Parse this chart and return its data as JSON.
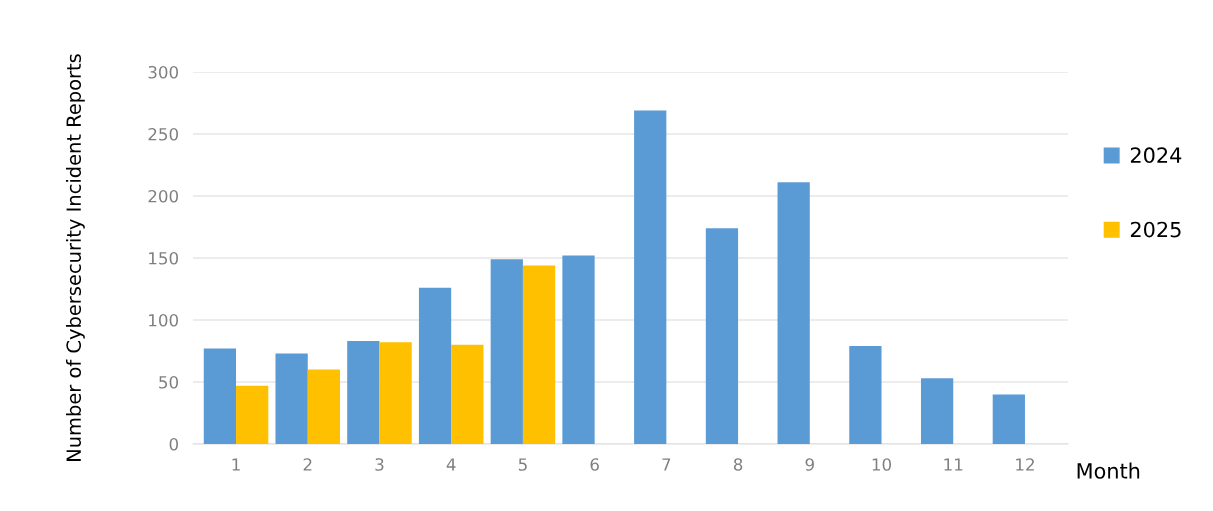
{
  "chart_data": {
    "type": "bar",
    "xlabel": "Month",
    "ylabel": "Number of Cybersecurity Incident Reports",
    "categories": [
      "1",
      "2",
      "3",
      "4",
      "5",
      "6",
      "7",
      "8",
      "9",
      "10",
      "11",
      "12"
    ],
    "series": [
      {
        "name": "2024",
        "color": "#5b9bd5",
        "values": [
          77,
          73,
          83,
          126,
          149,
          152,
          269,
          174,
          211,
          79,
          53,
          40
        ]
      },
      {
        "name": "2025",
        "color": "#ffc000",
        "values": [
          47,
          60,
          82,
          80,
          144,
          null,
          null,
          null,
          null,
          null,
          null,
          null
        ]
      }
    ],
    "ylim": [
      0,
      300
    ],
    "yticks": [
      0,
      50,
      100,
      150,
      200,
      250,
      300
    ],
    "grid": "y",
    "legend": "right"
  }
}
